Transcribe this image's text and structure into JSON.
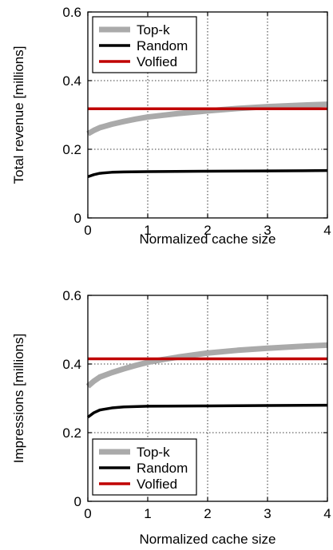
{
  "chart_data": [
    {
      "type": "line",
      "title": "",
      "xlabel": "Normalized cache size",
      "ylabel": "Total revenue [millions]",
      "xlim": [
        0,
        4
      ],
      "ylim": [
        0,
        0.6
      ],
      "xticks": [
        "0",
        "1",
        "2",
        "3",
        "4"
      ],
      "yticks": [
        "0",
        "0.2",
        "0.4",
        "0.6"
      ],
      "grid": true,
      "legend_position": "top-left",
      "series": [
        {
          "name": "Top-k",
          "color": "#aaaaaa",
          "x": [
            0,
            0.1,
            0.2,
            0.4,
            0.6,
            0.8,
            1.0,
            1.25,
            1.5,
            2.0,
            2.5,
            3.0,
            3.5,
            4.0
          ],
          "y": [
            0.245,
            0.255,
            0.263,
            0.273,
            0.281,
            0.288,
            0.294,
            0.299,
            0.304,
            0.312,
            0.319,
            0.324,
            0.328,
            0.331
          ]
        },
        {
          "name": "Random",
          "color": "#000000",
          "x": [
            0,
            0.1,
            0.2,
            0.4,
            0.6,
            1.0,
            2.0,
            3.0,
            4.0
          ],
          "y": [
            0.12,
            0.126,
            0.13,
            0.133,
            0.134,
            0.135,
            0.136,
            0.137,
            0.138
          ]
        },
        {
          "name": "Volfied",
          "color": "#c00000",
          "x": [
            0,
            4.0
          ],
          "y": [
            0.318,
            0.318
          ]
        }
      ]
    },
    {
      "type": "line",
      "title": "",
      "xlabel": "Normalized cache size",
      "ylabel": "Impressions [millions]",
      "xlim": [
        0,
        4
      ],
      "ylim": [
        0,
        0.6
      ],
      "xticks": [
        "0",
        "1",
        "2",
        "3",
        "4"
      ],
      "yticks": [
        "0",
        "0.2",
        "0.4",
        "0.6"
      ],
      "grid": true,
      "legend_position": "bottom-left",
      "series": [
        {
          "name": "Top-k",
          "color": "#aaaaaa",
          "x": [
            0,
            0.1,
            0.2,
            0.4,
            0.6,
            0.8,
            1.0,
            1.25,
            1.5,
            2.0,
            2.5,
            3.0,
            3.5,
            4.0
          ],
          "y": [
            0.335,
            0.35,
            0.362,
            0.375,
            0.386,
            0.396,
            0.405,
            0.413,
            0.42,
            0.432,
            0.44,
            0.446,
            0.451,
            0.455
          ]
        },
        {
          "name": "Random",
          "color": "#000000",
          "x": [
            0,
            0.1,
            0.2,
            0.4,
            0.6,
            1.0,
            2.0,
            3.0,
            4.0
          ],
          "y": [
            0.245,
            0.258,
            0.266,
            0.272,
            0.275,
            0.277,
            0.278,
            0.279,
            0.28
          ]
        },
        {
          "name": "Volfied",
          "color": "#c00000",
          "x": [
            0,
            4.0
          ],
          "y": [
            0.415,
            0.415
          ]
        }
      ]
    }
  ]
}
